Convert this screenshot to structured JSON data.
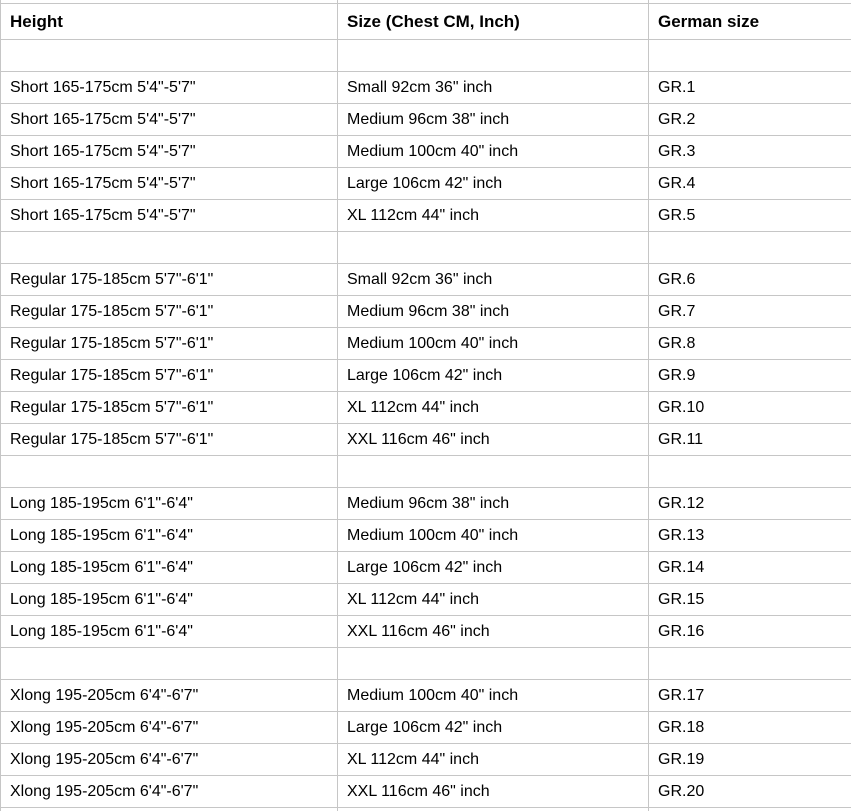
{
  "colors": {
    "background": "#ffffff",
    "grid_line": "#c6c6c6",
    "text": "#000000"
  },
  "chart_data": {
    "type": "table",
    "grid": true,
    "columns": [
      "Height",
      "Size (Chest CM, Inch)",
      "German size"
    ],
    "rows": [
      [
        "",
        "",
        ""
      ],
      [
        "Short 165-175cm 5'4\"-5'7\"",
        "Small 92cm 36\" inch",
        "GR.1"
      ],
      [
        "Short 165-175cm 5'4\"-5'7\"",
        "Medium 96cm 38\" inch",
        "GR.2"
      ],
      [
        "Short 165-175cm 5'4\"-5'7\"",
        "Medium 100cm 40\" inch",
        "GR.3"
      ],
      [
        "Short 165-175cm 5'4\"-5'7\"",
        "Large 106cm 42\" inch",
        "GR.4"
      ],
      [
        "Short 165-175cm 5'4\"-5'7\"",
        "XL 112cm 44\" inch",
        "GR.5"
      ],
      [
        "",
        "",
        ""
      ],
      [
        "Regular 175-185cm 5'7\"-6'1\"",
        "Small 92cm 36\" inch",
        "GR.6"
      ],
      [
        "Regular 175-185cm 5'7\"-6'1\"",
        "Medium 96cm 38\" inch",
        "GR.7"
      ],
      [
        "Regular 175-185cm 5'7\"-6'1\"",
        "Medium 100cm 40\" inch",
        "GR.8"
      ],
      [
        "Regular 175-185cm 5'7\"-6'1\"",
        "Large 106cm 42\" inch",
        "GR.9"
      ],
      [
        "Regular 175-185cm 5'7\"-6'1\"",
        "XL 112cm 44\" inch",
        "GR.10"
      ],
      [
        "Regular 175-185cm 5'7\"-6'1\"",
        "XXL 116cm 46\" inch",
        "GR.11"
      ],
      [
        "",
        "",
        ""
      ],
      [
        "Long 185-195cm 6'1\"-6'4\"",
        "Medium 96cm 38\" inch",
        "GR.12"
      ],
      [
        "Long 185-195cm 6'1\"-6'4\"",
        "Medium 100cm 40\" inch",
        "GR.13"
      ],
      [
        "Long 185-195cm 6'1\"-6'4\"",
        "Large 106cm 42\" inch",
        "GR.14"
      ],
      [
        "Long 185-195cm 6'1\"-6'4\"",
        "XL 112cm 44\" inch",
        "GR.15"
      ],
      [
        "Long 185-195cm 6'1\"-6'4\"",
        "XXL 116cm 46\" inch",
        "GR.16"
      ],
      [
        "",
        "",
        ""
      ],
      [
        "Xlong 195-205cm 6'4\"-6'7\"",
        "Medium 100cm 40\" inch",
        "GR.17"
      ],
      [
        "Xlong 195-205cm 6'4\"-6'7\"",
        "Large 106cm 42\" inch",
        "GR.18"
      ],
      [
        "Xlong 195-205cm 6'4\"-6'7\"",
        "XL 112cm 44\" inch",
        "GR.19"
      ],
      [
        "Xlong 195-205cm 6'4\"-6'7\"",
        "XXL 116cm 46\" inch",
        "GR.20"
      ]
    ]
  }
}
